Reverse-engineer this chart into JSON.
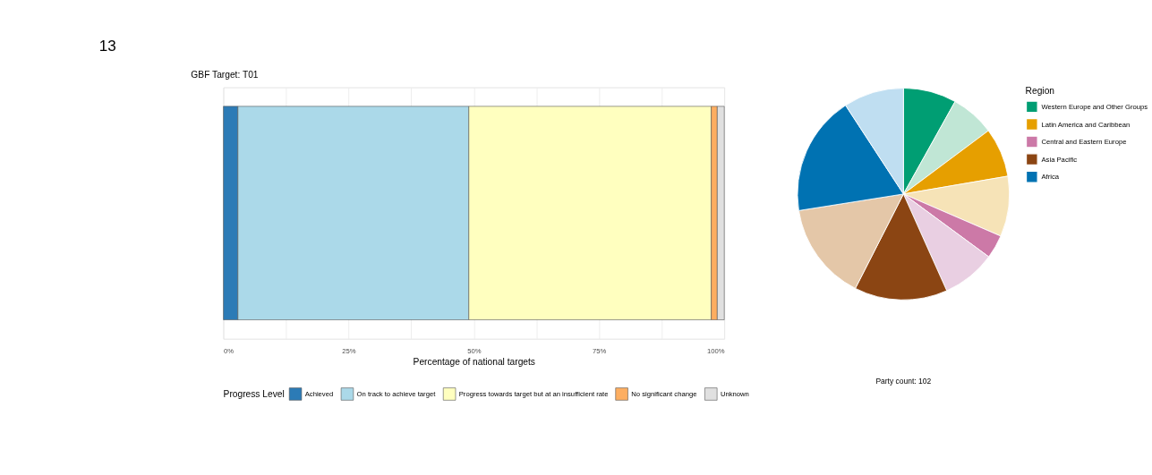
{
  "chart_data": [
    {
      "type": "bar",
      "title": "GBF Target: T01",
      "xlabel": "Percentage of national targets",
      "legend_title": "Progress Level",
      "orientation": "horizontal",
      "stacked": true,
      "categories": [
        null
      ],
      "series": [
        {
          "name": "Achieved",
          "color": "#2c7bb6",
          "values": [
            2.9
          ]
        },
        {
          "name": "On track to achieve target",
          "color": "#abd9e9",
          "values": [
            46.1
          ]
        },
        {
          "name": "Progress towards target but at an insufficient rate",
          "color": "#ffffbf",
          "values": [
            48.4
          ]
        },
        {
          "name": "No significant change",
          "color": "#fdae61",
          "values": [
            1.2
          ]
        },
        {
          "name": "Unknown",
          "color": "#e0e0e0",
          "values": [
            1.4
          ]
        }
      ],
      "xlim": [
        0,
        100
      ],
      "xticks": [
        {
          "value": 0,
          "label": "0%"
        },
        {
          "value": 12.5,
          "label": null
        },
        {
          "value": 25,
          "label": "25%"
        },
        {
          "value": 37.5,
          "label": null
        },
        {
          "value": 50,
          "label": "50%"
        },
        {
          "value": 62.5,
          "label": null
        },
        {
          "value": 75,
          "label": "75%"
        },
        {
          "value": 87.5,
          "label": null
        },
        {
          "value": 100,
          "label": "100%"
        }
      ],
      "grid": "x",
      "legend": "bottom",
      "tick_labels": "x",
      "annotations": [
        "13"
      ]
    },
    {
      "type": "pie",
      "legend_title": "Region",
      "legend": "right",
      "categories": [
        "Western Europe and Other Groups",
        null,
        "Latin America and Caribbean",
        null,
        "Central and Eastern Europe",
        null,
        "Asia Pacific",
        null,
        "Africa",
        null
      ],
      "values": [
        8.1,
        6.7,
        7.5,
        9.2,
        3.6,
        8.2,
        14.2,
        15.0,
        18.3,
        9.2
      ],
      "colors": [
        "#009e73",
        "#c0e6d5",
        "#e69f00",
        "#f6e3b7",
        "#cc79a7",
        "#e9cfe2",
        "#8b4513",
        "#e4c7a8",
        "#0072b2",
        "#bfdef1"
      ],
      "annotations": [
        "Party count: 102"
      ]
    }
  ]
}
